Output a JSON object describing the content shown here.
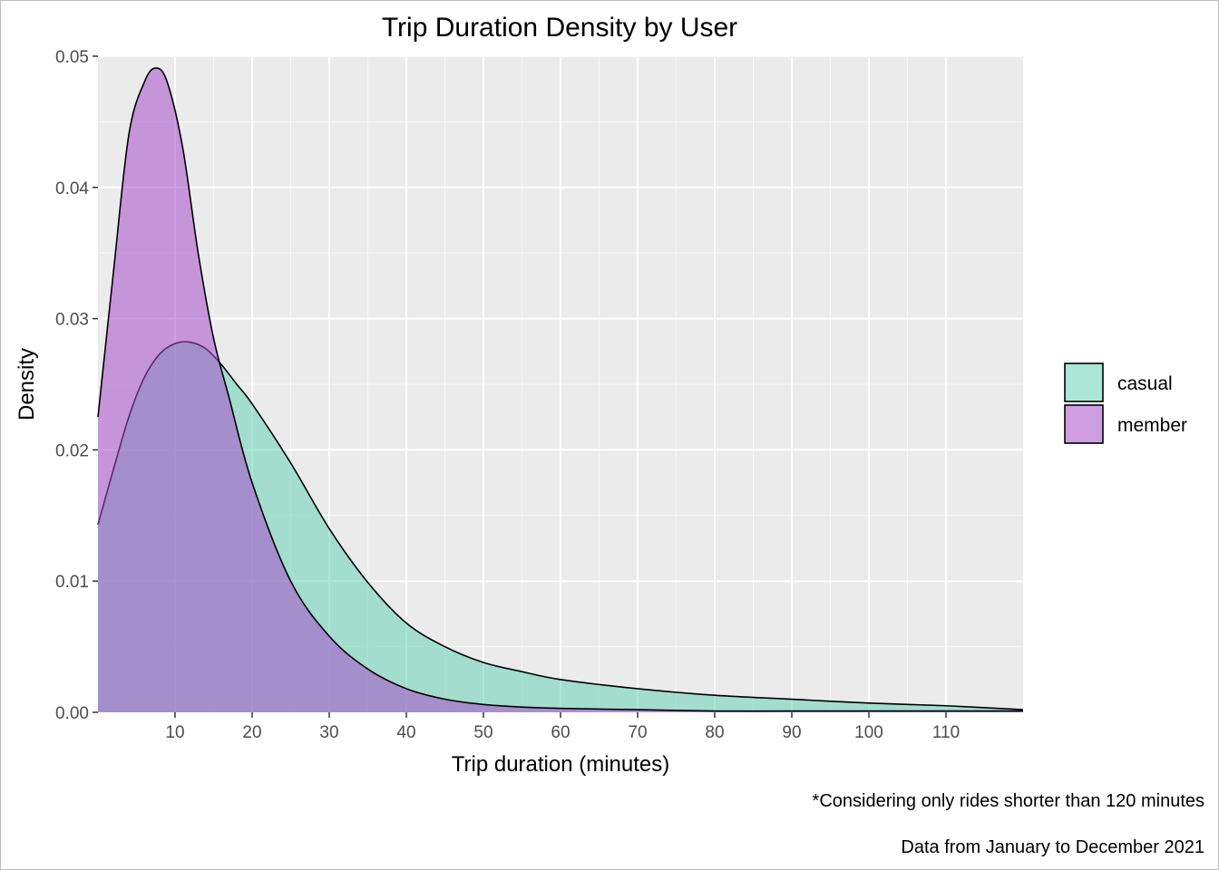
{
  "chart_data": {
    "type": "area",
    "title": "Trip Duration Density by User",
    "xlabel": "Trip duration (minutes)",
    "ylabel": "Density",
    "xlim": [
      0,
      120
    ],
    "ylim": [
      0,
      0.05
    ],
    "x_ticks": [
      10,
      20,
      30,
      40,
      50,
      60,
      70,
      80,
      90,
      100,
      110
    ],
    "x_tick_labels": [
      "10",
      "20",
      "30",
      "40",
      "50",
      "60",
      "70",
      "80",
      "90",
      "100",
      "110"
    ],
    "y_ticks": [
      0,
      0.01,
      0.02,
      0.03,
      0.04,
      0.05
    ],
    "y_tick_labels": [
      "0.00",
      "0.01",
      "0.02",
      "0.03",
      "0.04",
      "0.05"
    ],
    "grid": true,
    "legend_position": "right",
    "captions": [
      "*Considering only rides shorter than 120 minutes",
      "Data from January to December 2021"
    ],
    "series": [
      {
        "name": "casual",
        "color": "#66D1B5",
        "x": [
          0,
          2,
          4,
          6,
          8,
          10,
          12,
          14,
          16,
          18,
          20,
          25,
          30,
          35,
          40,
          45,
          50,
          55,
          60,
          70,
          80,
          90,
          100,
          110,
          120
        ],
        "y": [
          0.0143,
          0.0185,
          0.0225,
          0.0255,
          0.0273,
          0.0281,
          0.0282,
          0.0277,
          0.0265,
          0.025,
          0.0235,
          0.019,
          0.014,
          0.0099,
          0.0068,
          0.005,
          0.0038,
          0.0031,
          0.0025,
          0.0018,
          0.0013,
          0.001,
          0.0007,
          0.0005,
          0.0002
        ]
      },
      {
        "name": "member",
        "color": "#A64CCA",
        "x": [
          0,
          2,
          4,
          6,
          7.5,
          9,
          11,
          13,
          15,
          17,
          20,
          25,
          30,
          35,
          40,
          45,
          50,
          55,
          60,
          70,
          80,
          90,
          100,
          110,
          120
        ],
        "y": [
          0.0225,
          0.0335,
          0.044,
          0.048,
          0.0491,
          0.048,
          0.043,
          0.035,
          0.0285,
          0.024,
          0.0175,
          0.01,
          0.0058,
          0.0033,
          0.0018,
          0.001,
          0.0006,
          0.0004,
          0.0003,
          0.0002,
          0.0001,
          0.0001,
          0.0001,
          0.0001,
          0.0001
        ]
      }
    ]
  }
}
